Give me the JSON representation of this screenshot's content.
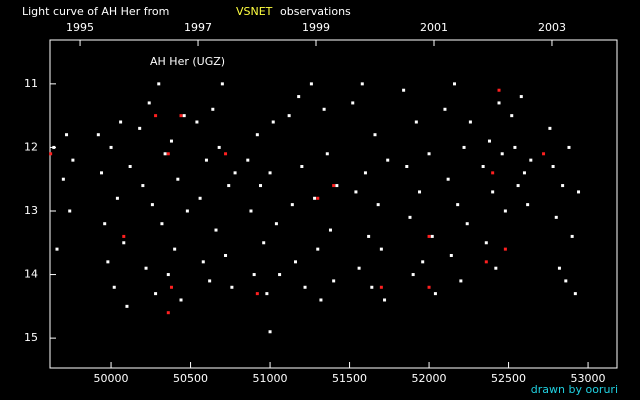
{
  "chart_data": {
    "type": "scatter",
    "title_prefix": "Light curve of AH Her from",
    "title_highlight": "VSNET",
    "title_suffix": "observations",
    "annotation": "AH Her (UGZ)",
    "credit": "drawn by ooruri",
    "xlim": [
      49616,
      53182
    ],
    "ylim": [
      10.31,
      15.47
    ],
    "y_inverted": true,
    "xticks": [
      50000,
      50500,
      51000,
      51500,
      52000,
      52500,
      53000
    ],
    "yticks": [
      11,
      12,
      13,
      14,
      15
    ],
    "x2ticks": [
      {
        "value": 49805,
        "label": "1995"
      },
      {
        "value": 50547,
        "label": "1997"
      },
      {
        "value": 51289,
        "label": "1999"
      },
      {
        "value": 52031,
        "label": "2001"
      },
      {
        "value": 52773,
        "label": "2003"
      }
    ],
    "series": [
      {
        "color": "#ffffff",
        "x": [
          49640,
          49660,
          49700,
          49720,
          49740,
          49760,
          49920,
          49940,
          49960,
          49980,
          50000,
          50020,
          50040,
          50060,
          50080,
          50100,
          50120,
          50180,
          50200,
          50220,
          50240,
          50260,
          50280,
          50300,
          50320,
          50340,
          50360,
          50380,
          50400,
          50420,
          50440,
          50460,
          50480,
          50540,
          50560,
          50580,
          50600,
          50620,
          50640,
          50660,
          50680,
          50700,
          50720,
          50740,
          50760,
          50780,
          50860,
          50880,
          50900,
          50920,
          50940,
          50960,
          50980,
          51000,
          51020,
          51040,
          51060,
          51000,
          51120,
          51140,
          51160,
          51180,
          51200,
          51220,
          51260,
          51280,
          51300,
          51320,
          51340,
          51360,
          51380,
          51400,
          51420,
          51520,
          51540,
          51560,
          51580,
          51600,
          51620,
          51640,
          51660,
          51680,
          51700,
          51720,
          51740,
          51840,
          51860,
          51880,
          51900,
          51920,
          51940,
          51960,
          52000,
          52020,
          52040,
          52100,
          52120,
          52140,
          52160,
          52180,
          52200,
          52220,
          52240,
          52260,
          52340,
          52360,
          52380,
          52400,
          52420,
          52440,
          52460,
          52480,
          52520,
          52540,
          52560,
          52580,
          52600,
          52620,
          52640,
          52760,
          52780,
          52800,
          52820,
          52840,
          52860,
          52880,
          52900,
          52920,
          52940
        ],
        "values": [
          12.0,
          13.6,
          12.5,
          11.8,
          13.0,
          12.2,
          11.8,
          12.4,
          13.2,
          13.8,
          12.0,
          14.2,
          12.8,
          11.6,
          13.5,
          14.5,
          12.3,
          11.7,
          12.6,
          13.9,
          11.3,
          12.9,
          14.3,
          11.0,
          13.2,
          12.1,
          14.0,
          11.9,
          13.6,
          12.5,
          14.4,
          11.5,
          13.0,
          11.6,
          12.8,
          13.8,
          12.2,
          14.1,
          11.4,
          13.3,
          12.0,
          11.0,
          13.7,
          12.6,
          14.2,
          12.4,
          12.2,
          13.0,
          14.0,
          11.8,
          12.6,
          13.5,
          14.3,
          12.4,
          11.6,
          13.2,
          14.0,
          14.9,
          11.5,
          12.9,
          13.8,
          11.2,
          12.3,
          14.2,
          11.0,
          12.8,
          13.6,
          14.4,
          11.4,
          12.1,
          13.3,
          14.1,
          12.6,
          11.3,
          12.7,
          13.9,
          11.0,
          12.4,
          13.4,
          14.2,
          11.8,
          12.9,
          13.6,
          14.4,
          12.2,
          11.1,
          12.3,
          13.1,
          14.0,
          11.6,
          12.7,
          13.8,
          12.1,
          13.4,
          14.3,
          11.4,
          12.5,
          13.7,
          11.0,
          12.9,
          14.1,
          12.0,
          13.2,
          11.6,
          12.3,
          13.5,
          11.9,
          12.7,
          13.9,
          11.3,
          12.1,
          13.0,
          11.5,
          12.0,
          12.6,
          11.2,
          12.4,
          12.9,
          12.2,
          11.7,
          12.3,
          13.1,
          13.9,
          12.6,
          14.1,
          12.0,
          13.4,
          14.3,
          12.7
        ]
      },
      {
        "color": "#ff2020",
        "x": [
          49620,
          50080,
          50280,
          50360,
          50380,
          50360,
          50440,
          50720,
          50920,
          51400,
          51300,
          51700,
          52000,
          52000,
          52400,
          52480,
          52440,
          52720,
          52360
        ],
        "values": [
          12.1,
          13.4,
          11.5,
          12.1,
          14.2,
          14.6,
          11.5,
          12.1,
          14.3,
          12.6,
          12.8,
          14.2,
          14.2,
          13.4,
          12.4,
          13.6,
          11.1,
          12.1,
          13.8
        ]
      }
    ]
  }
}
